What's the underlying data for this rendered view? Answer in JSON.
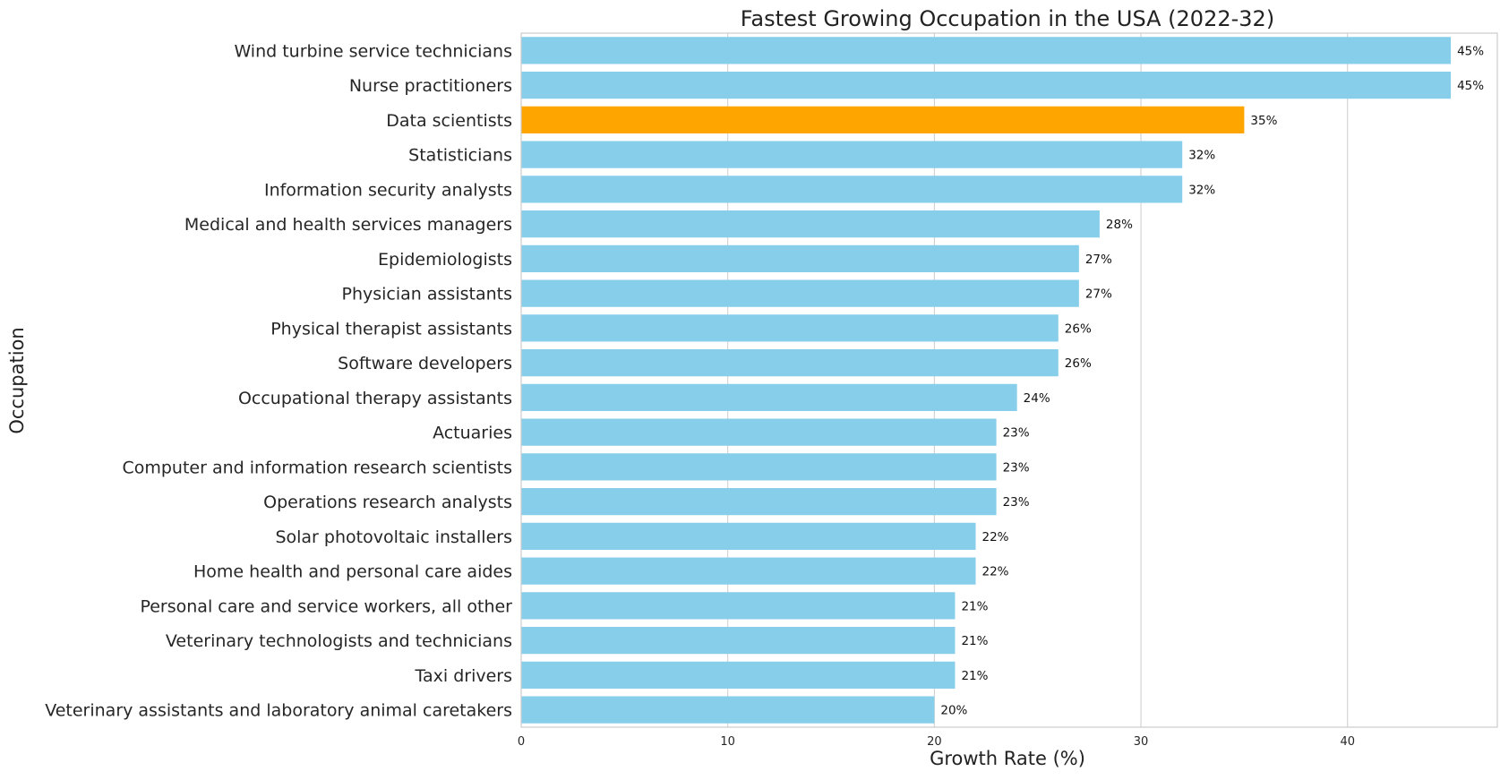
{
  "chart_data": {
    "type": "bar",
    "orientation": "horizontal",
    "title": "Fastest Growing Occupation in the USA (2022-32)",
    "xlabel": "Growth Rate (%)",
    "ylabel": "Occupation",
    "xlim": [
      0,
      47.25
    ],
    "xticks": [
      0,
      10,
      20,
      30,
      40
    ],
    "grid": "vertical",
    "value_suffix": "%",
    "default_color": "#87CEEB",
    "highlight_color": "#FFA500",
    "categories": [
      "Wind turbine service technicians",
      "Nurse practitioners",
      "Data scientists",
      "Statisticians",
      "Information security analysts",
      "Medical and health services managers",
      "Epidemiologists",
      "Physician assistants",
      "Physical therapist assistants",
      "Software developers",
      "Occupational therapy assistants",
      "Actuaries",
      "Computer and information research scientists",
      "Operations research analysts",
      "Solar photovoltaic installers",
      "Home health and personal care aides",
      "Personal care and service workers, all other",
      "Veterinary technologists and technicians",
      "Taxi drivers",
      "Veterinary assistants and laboratory animal caretakers"
    ],
    "values": [
      45,
      45,
      35,
      32,
      32,
      28,
      27,
      27,
      26,
      26,
      24,
      23,
      23,
      23,
      22,
      22,
      21,
      21,
      21,
      20
    ],
    "highlight": [
      "Data scientists"
    ]
  }
}
